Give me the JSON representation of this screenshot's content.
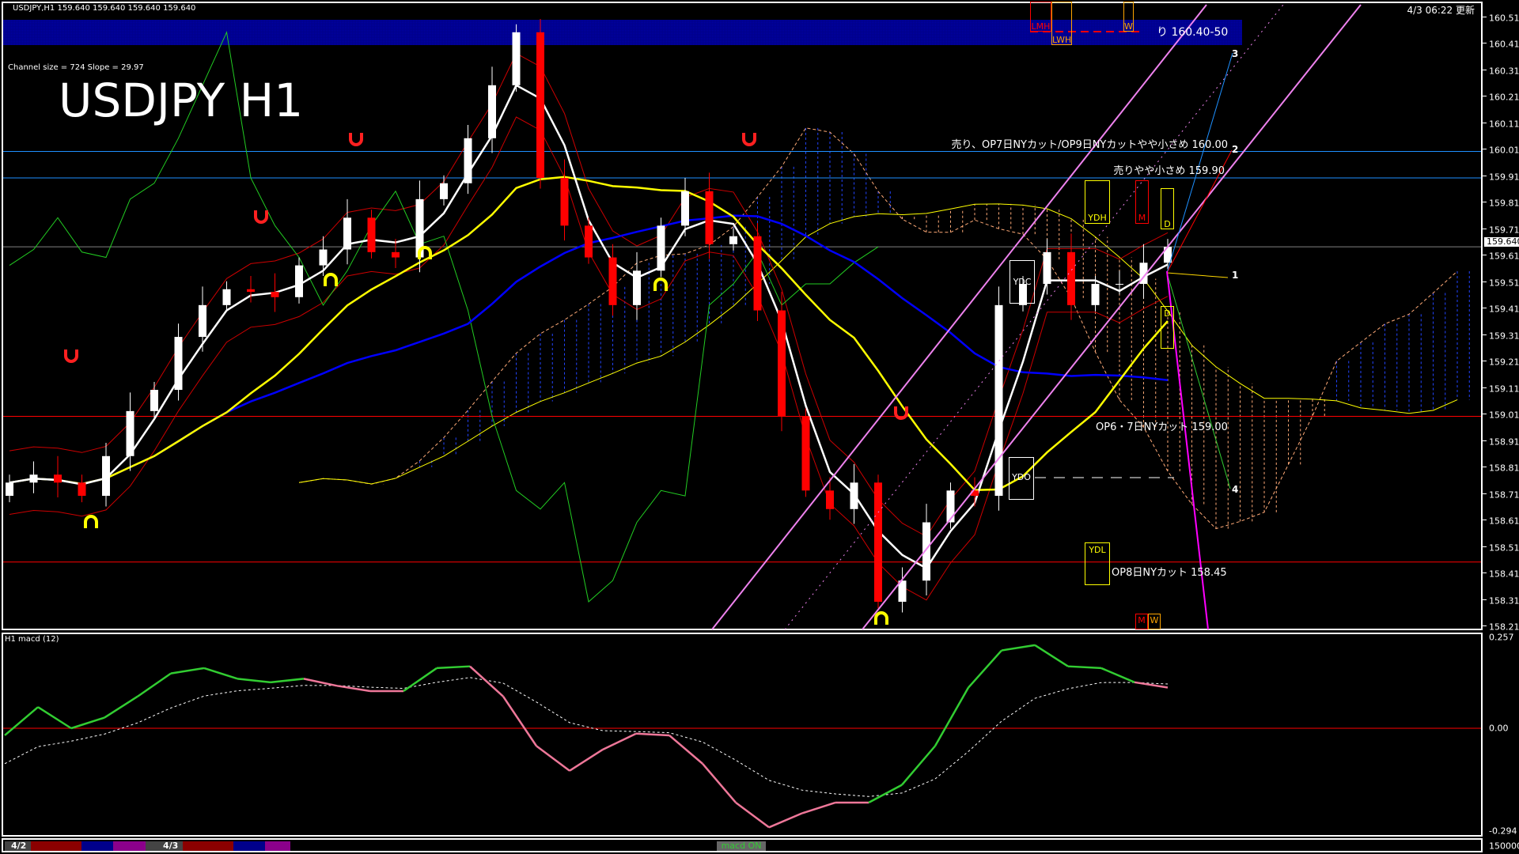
{
  "header": {
    "symbol_line": "USDJPY,H1  159.640 159.640 159.640 159.640",
    "timestamp": "4/3 06:22 更新",
    "channel_info": "Channel size = 724 Slope = 29.97",
    "watermark": "USDJPY H1"
  },
  "annotations": {
    "resistance_band": "り 160.40-50",
    "level_160": "売り、OP7日NYカット/OP9日NYカットやや小さめ 160.00",
    "level_15990": "売りやや小さめ 159.90",
    "level_159": "OP6・7日NYカット 159.00",
    "level_15845": "OP8日NYカット 158.45"
  },
  "markers": {
    "lmh": "LMH",
    "lwh": "LWH",
    "w_top": "W",
    "ydh": "YDH",
    "m_top": "M",
    "d_upper": "D",
    "d_lower": "D",
    "ydc": "YDC",
    "ydo": "YDO",
    "ydl": "YDL",
    "m_bottom": "M",
    "w_bottom": "W"
  },
  "projection_labels": [
    "1",
    "2",
    "3",
    "4"
  ],
  "macd_pane": {
    "title": "H1  macd (12)",
    "max_label": "0.257",
    "zero_label": "0.00",
    "min_label": "-0.294",
    "volume_label": "150000"
  },
  "session_bar": {
    "days": [
      "4/2",
      "4/3"
    ],
    "toggle_label": "macd ON"
  },
  "colors": {
    "bull": "#ffffff",
    "bear": "#ff0000",
    "fast_ma": "#ffffff",
    "mid_ma": "#ffff00",
    "slow_ma": "#0000ff",
    "channel": "#ee82ee",
    "level_blue": "#1e90ff",
    "level_red": "#ff0000",
    "band": "#00008b",
    "macd_up": "#32cd32",
    "macd_down": "#ee7799"
  },
  "chart_data": [
    {
      "type": "candlestick",
      "title": "USDJPY,H1",
      "closes": [
        158.75,
        158.78,
        158.75,
        158.7,
        158.85,
        159.02,
        159.1,
        159.3,
        159.42,
        159.48,
        159.47,
        159.45,
        159.57,
        159.63,
        159.75,
        159.62,
        159.6,
        159.82,
        159.88,
        160.05,
        160.25,
        160.45,
        159.9,
        159.72,
        159.6,
        159.42,
        159.55,
        159.72,
        159.85,
        159.65,
        159.68,
        159.4,
        159.0,
        158.72,
        158.65,
        158.75,
        158.3,
        158.38,
        158.6,
        158.72,
        158.7,
        159.42,
        159.5,
        159.62,
        159.42,
        159.5,
        159.5,
        159.58,
        159.64
      ],
      "current_price": "159.640",
      "ylim": [
        158.21,
        160.51
      ],
      "y_ticks": [
        "160.510",
        "160.410",
        "160.310",
        "160.210",
        "160.110",
        "160.010",
        "159.910",
        "159.810",
        "159.710",
        "159.610",
        "159.510",
        "159.410",
        "159.310",
        "159.210",
        "159.110",
        "159.010",
        "158.910",
        "158.810",
        "158.710",
        "158.610",
        "158.510",
        "158.410",
        "158.310",
        "158.210"
      ],
      "levels": [
        {
          "price": 160.0,
          "color": "#1e90ff"
        },
        {
          "price": 159.9,
          "color": "#1e90ff"
        },
        {
          "price": 159.64,
          "color": "#808080"
        },
        {
          "price": 159.0,
          "color": "#ff0000"
        },
        {
          "price": 158.45,
          "color": "#ff0000"
        }
      ],
      "resistance_zone": [
        160.4,
        160.5
      ]
    },
    {
      "type": "line",
      "title": "H1  macd (12)",
      "values": [
        -0.02,
        0.06,
        0.0,
        0.03,
        0.09,
        0.155,
        0.17,
        0.14,
        0.13,
        0.14,
        0.12,
        0.105,
        0.105,
        0.17,
        0.175,
        0.09,
        -0.05,
        -0.12,
        -0.06,
        -0.015,
        -0.02,
        -0.1,
        -0.21,
        -0.28,
        -0.24,
        -0.21,
        -0.21,
        -0.16,
        -0.05,
        0.115,
        0.22,
        0.235,
        0.175,
        0.17,
        0.13,
        0.115
      ],
      "ylim": [
        -0.294,
        0.257
      ],
      "zero_line": 0
    }
  ]
}
